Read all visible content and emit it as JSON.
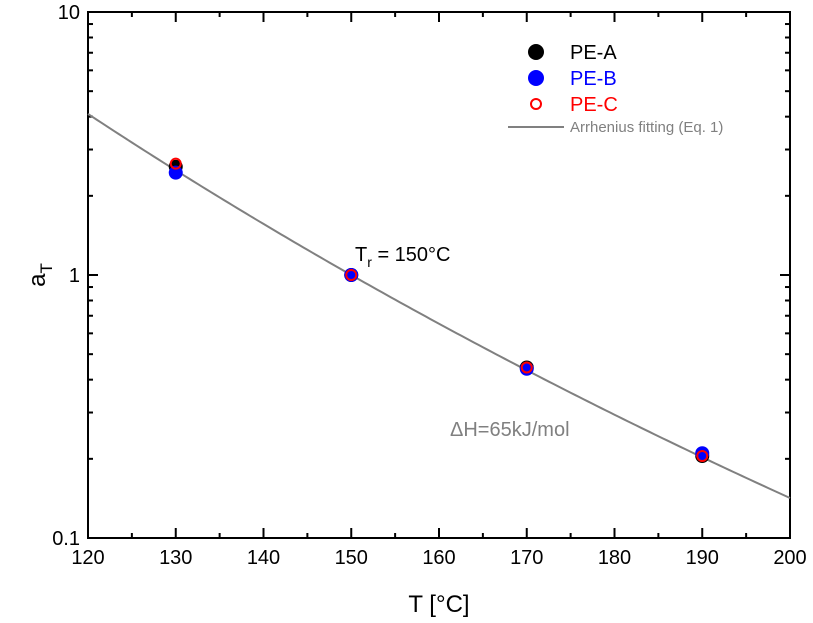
{
  "chart_data": {
    "type": "scatter",
    "xlabel": "T [°C]",
    "ylabel": "a",
    "ylabel_sub": "T",
    "xlim": [
      120,
      200
    ],
    "ylim": [
      0.1,
      10
    ],
    "yscale": "log",
    "grid": false,
    "legend_position": "top-right",
    "x_ticks": [
      120,
      130,
      140,
      150,
      160,
      170,
      180,
      190,
      200
    ],
    "x_tick_labels": [
      "120",
      "130",
      "140",
      "150",
      "160",
      "170",
      "180",
      "190",
      "200"
    ],
    "y_ticks": [
      0.1,
      1,
      10
    ],
    "y_tick_labels": [
      "0.1",
      "1",
      "10"
    ],
    "series": [
      {
        "name": "PE-A",
        "marker": "filled-circle",
        "color": "#000000",
        "x": [
          130,
          150,
          170,
          190
        ],
        "y": [
          2.58,
          1.0,
          0.445,
          0.205
        ]
      },
      {
        "name": "PE-B",
        "marker": "filled-circle",
        "color": "#0000ff",
        "x": [
          130,
          150,
          170,
          190
        ],
        "y": [
          2.45,
          1.0,
          0.44,
          0.21
        ]
      },
      {
        "name": "PE-C",
        "marker": "open-circle",
        "color": "#ff0000",
        "x": [
          130,
          150,
          170,
          190
        ],
        "y": [
          2.65,
          1.0,
          0.445,
          0.205
        ]
      }
    ],
    "fit": {
      "name": "Arrhenius fitting (Eq. 1)",
      "color": "#808080",
      "activation_energy_kJ_per_mol": 65,
      "reference_T_C": 150
    },
    "annotations": {
      "tr_main": "T",
      "tr_sub": "r",
      "tr_rest": " = 150°C",
      "dh": "ΔH=65kJ/mol"
    }
  }
}
